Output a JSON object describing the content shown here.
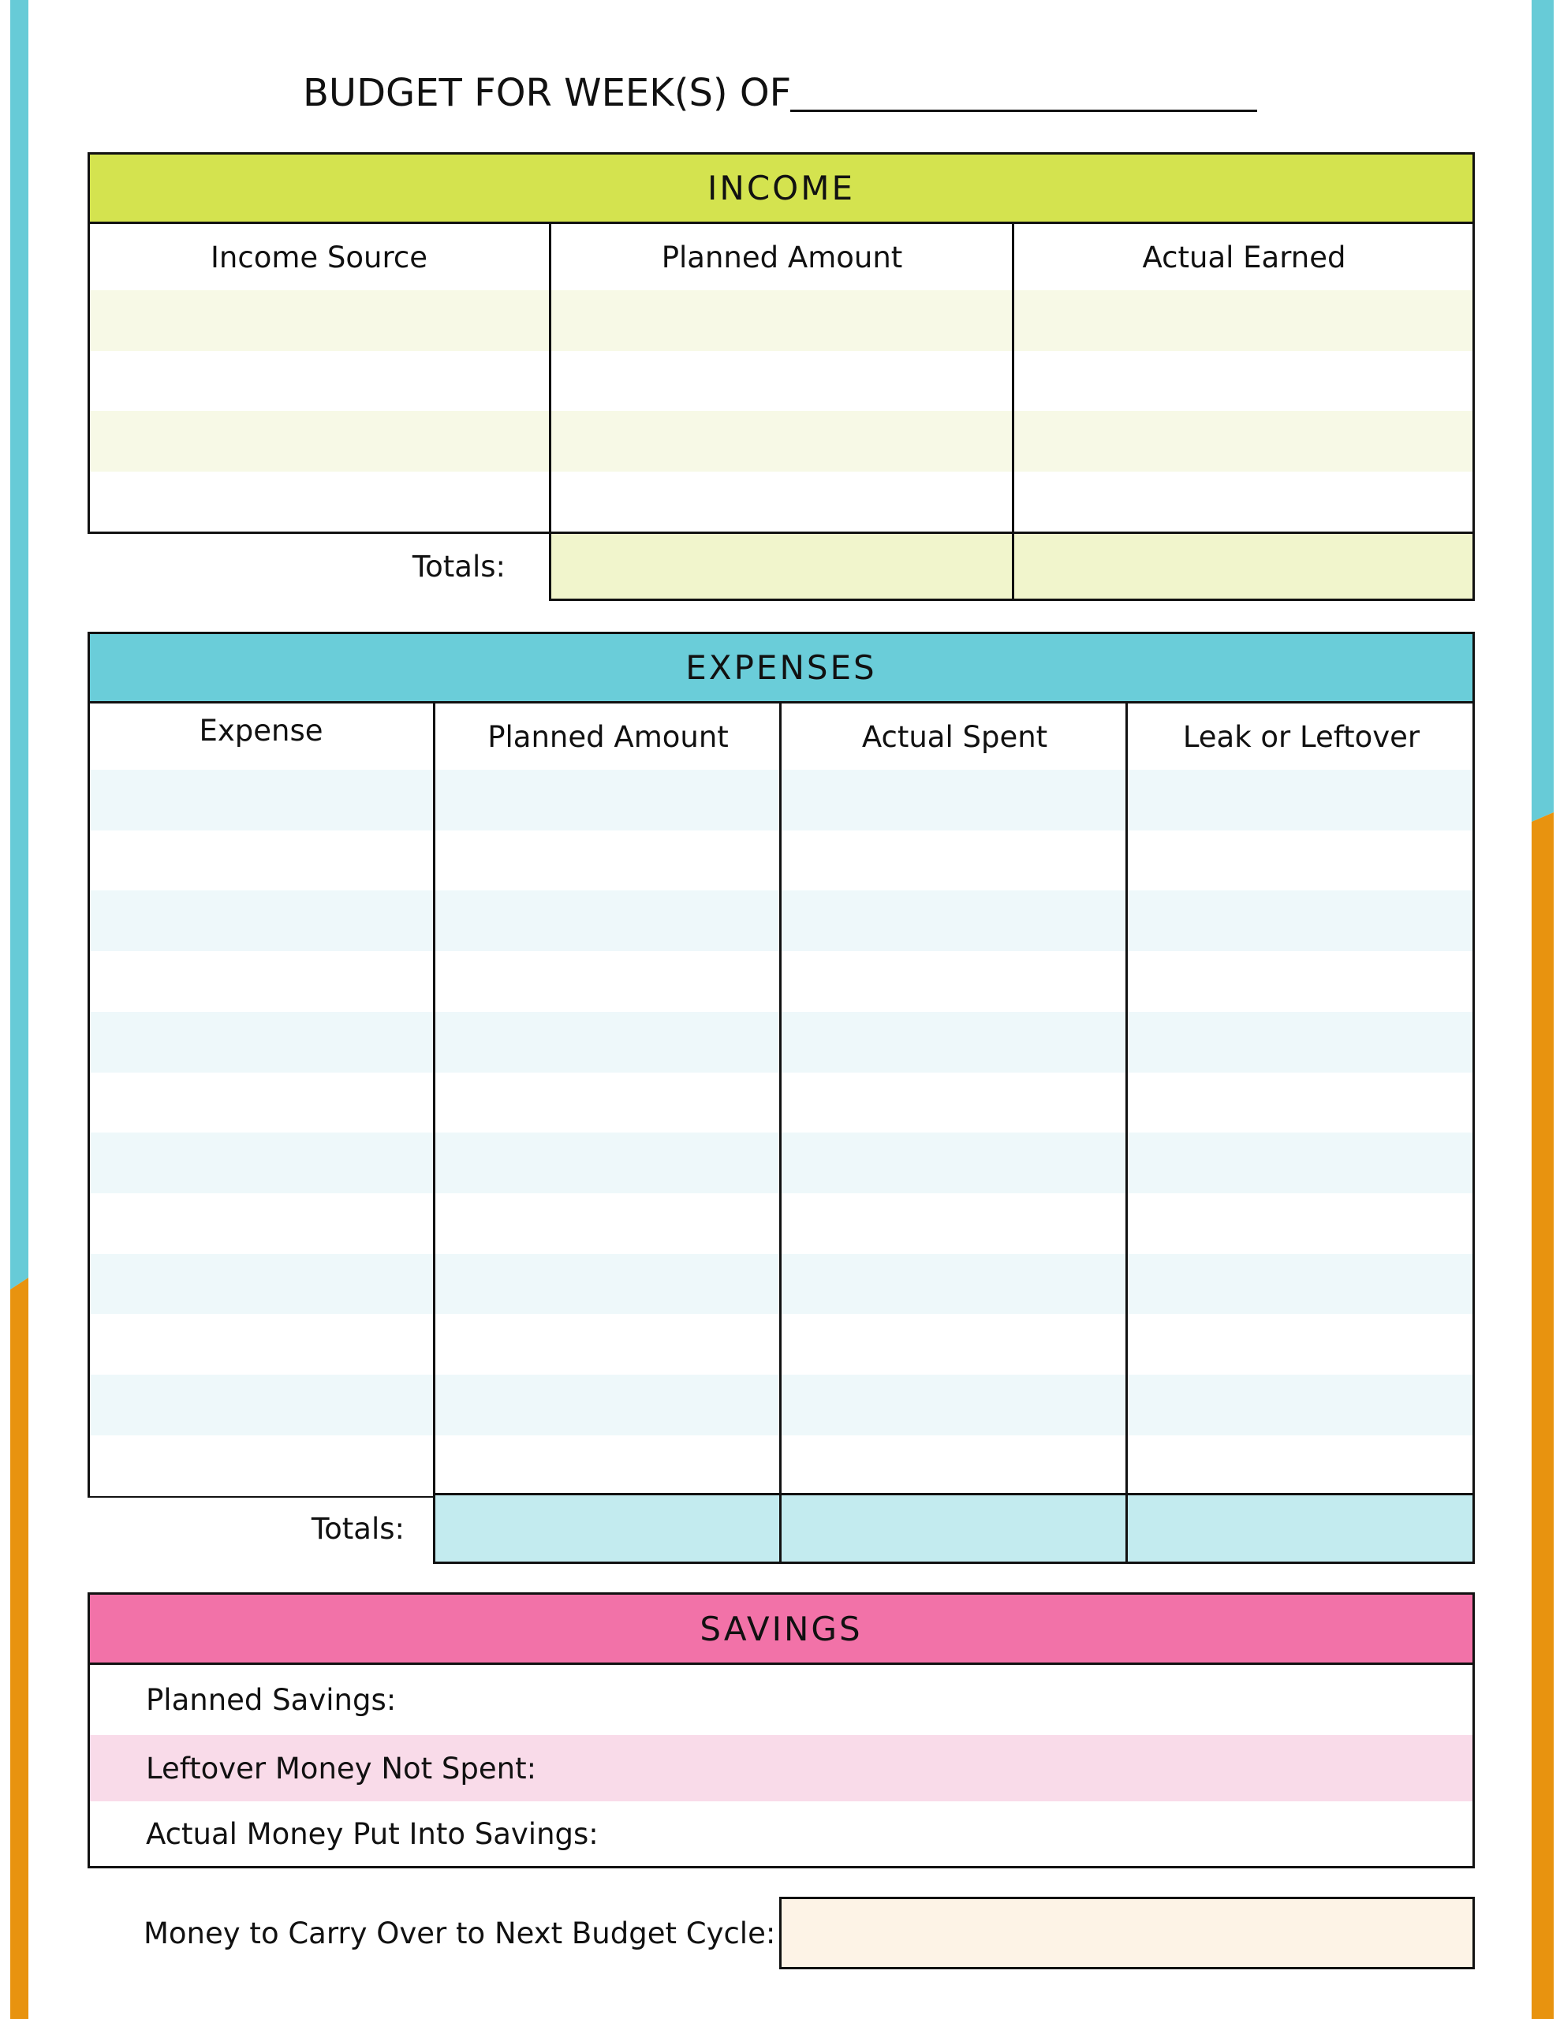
{
  "title": "BUDGET FOR WEEK(S) OF",
  "colors": {
    "income": "#d4e34f",
    "expenses": "#6acdd9",
    "savings": "#f272a8",
    "edge_blue": "#67cbd7",
    "edge_orange": "#e8930f",
    "carry": "#fdf3e6"
  },
  "income": {
    "title": "INCOME",
    "columns": [
      "Income Source",
      "Planned Amount",
      "Actual Earned"
    ],
    "totals_label": "Totals:"
  },
  "expenses": {
    "title": "EXPENSES",
    "columns": [
      "Expense",
      "Planned Amount",
      "Actual Spent",
      "Leak or Leftover"
    ],
    "totals_label": "Totals:"
  },
  "savings": {
    "title": "SAVINGS",
    "rows": [
      "Planned Savings:",
      "Leftover Money Not Spent:",
      "Actual Money Put Into Savings:"
    ]
  },
  "carry_over": {
    "label": "Money to Carry Over to Next Budget Cycle:"
  }
}
